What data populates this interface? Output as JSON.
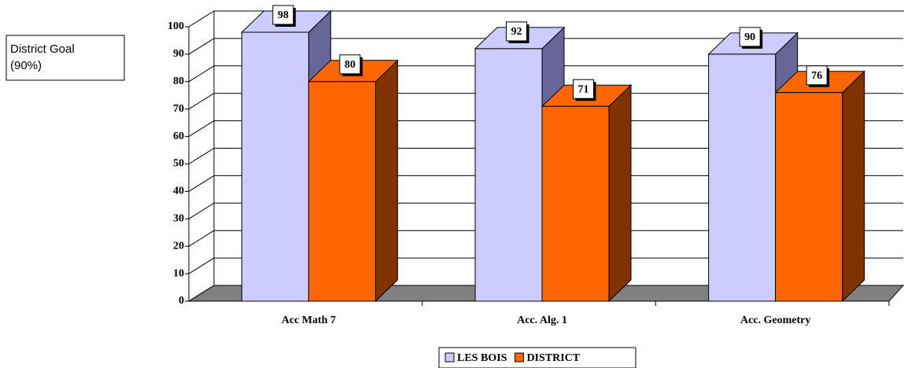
{
  "chart_data": {
    "type": "bar3d",
    "annotation": [
      "District Goal",
      "(90%)"
    ],
    "categories": [
      "Acc Math 7",
      "Acc. Alg. 1",
      "Acc. Geometry"
    ],
    "series": [
      {
        "name": "LES BOIS",
        "color": "#ccccff",
        "side_color": "#666699",
        "values": [
          98,
          92,
          90
        ]
      },
      {
        "name": "DISTRICT",
        "color": "#ff6600",
        "side_color": "#803300",
        "values": [
          80,
          71,
          76
        ]
      }
    ],
    "ylim": [
      0,
      100
    ],
    "yticks": [
      0,
      10,
      20,
      30,
      40,
      50,
      60,
      70,
      80,
      90,
      100
    ],
    "grid": true
  }
}
